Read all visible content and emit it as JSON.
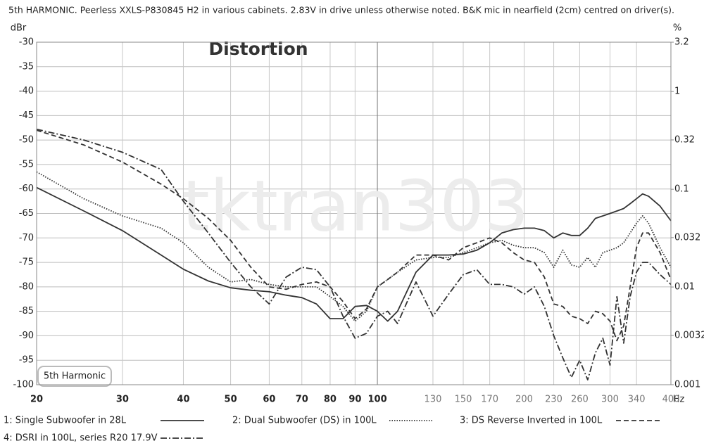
{
  "chart_data": {
    "type": "line",
    "title": "5th HARMONIC. Peerless XXLS-P830845 H2 in various cabinets. 2.83V in drive unless otherwise noted. B&K mic in nearfield (2cm) centred on driver(s).",
    "annotation": "Distortion",
    "watermark": "tktran303",
    "badge": "5th Harmonic",
    "y_label": "dBr",
    "y2_label": "%",
    "x_label": "Hz",
    "x_scale": "log",
    "y2_scale": "log",
    "grid": true,
    "xlim": [
      20,
      400
    ],
    "xticks": [
      20,
      30,
      40,
      50,
      60,
      70,
      80,
      90,
      100,
      130,
      150,
      170,
      200,
      230,
      260,
      300,
      340,
      400
    ],
    "ylim": [
      -100,
      -30
    ],
    "yticks": [
      -30,
      -35,
      -40,
      -45,
      -50,
      -55,
      -60,
      -65,
      -70,
      -75,
      -80,
      -85,
      -90,
      -95,
      -100
    ],
    "y2lim": [
      0.001,
      3.2
    ],
    "y2ticks": [
      3.2,
      1,
      0.32,
      0.1,
      0.032,
      0.01,
      0.0032,
      0.001
    ],
    "x": [
      20,
      25,
      30,
      36,
      40,
      45,
      50,
      55,
      60,
      65,
      70,
      75,
      80,
      85,
      90,
      95,
      100,
      105,
      110,
      120,
      130,
      140,
      150,
      160,
      170,
      180,
      190,
      200,
      210,
      220,
      230,
      240,
      250,
      260,
      270,
      280,
      290,
      300,
      310,
      320,
      330,
      340,
      350,
      360,
      380,
      400
    ],
    "series": [
      {
        "name": "1: Single Subwoofer in 28L",
        "color": "#333333",
        "style": "solid",
        "values": [
          -59.7,
          -64.5,
          -68.5,
          -73.5,
          -76.4,
          -78.8,
          -80.2,
          -80.7,
          -81,
          -81.7,
          -82.2,
          -83.5,
          -86.5,
          -86.5,
          -84,
          -83.8,
          -85,
          -87,
          -85,
          -77,
          -73.5,
          -73.5,
          -73.3,
          -72.5,
          -71,
          -69,
          -68.3,
          -68,
          -68,
          -68.5,
          -70,
          -69,
          -69.5,
          -69.5,
          -68,
          -66,
          -65.5,
          -65,
          -64.5,
          -64,
          -63,
          -62,
          -61,
          -61.5,
          -63.5,
          -66.5
        ]
      },
      {
        "name": "2: Dual Subwoofer (DS) in 100L",
        "color": "#333333",
        "style": "dotted",
        "values": [
          -56.5,
          -62,
          -65.5,
          -68,
          -71,
          -76,
          -79,
          -78.5,
          -79.5,
          -80,
          -80,
          -80,
          -82,
          -84,
          -87,
          -85,
          -80,
          -78.5,
          -77,
          -74.5,
          -74,
          -74,
          -73,
          -72,
          -71,
          -70.5,
          -71.5,
          -72,
          -72,
          -73,
          -76,
          -72.5,
          -75.5,
          -76,
          -74,
          -76,
          -73,
          -72.5,
          -72,
          -71,
          -69,
          -67,
          -65.5,
          -67,
          -72,
          -76
        ]
      },
      {
        "name": "3: DS Reverse Inverted in 100L",
        "color": "#333333",
        "style": "dashed",
        "values": [
          -48,
          -51,
          -54.5,
          -59,
          -62,
          -66,
          -70.5,
          -76,
          -80,
          -80.5,
          -79.5,
          -79,
          -80,
          -83,
          -86.5,
          -84.5,
          -80,
          -78.5,
          -77,
          -73.5,
          -73.5,
          -74.5,
          -72,
          -71,
          -70,
          -71,
          -73,
          -74.5,
          -75,
          -78,
          -83.5,
          -84,
          -86,
          -86.5,
          -87.5,
          -85,
          -85.5,
          -87,
          -91,
          -88,
          -80,
          -72,
          -69,
          -69,
          -73,
          -78.5
        ]
      },
      {
        "name": "4: DSRI in 100L, series R20 17.9V",
        "color": "#333333",
        "style": "dashdot",
        "values": [
          -47.8,
          -50,
          -52.5,
          -56,
          -62.5,
          -69,
          -75,
          -80,
          -83.5,
          -78,
          -76,
          -76.5,
          -80,
          -86,
          -90.5,
          -89.5,
          -86,
          -85,
          -87.5,
          -79,
          -86,
          -81.5,
          -77.5,
          -76.5,
          -79.5,
          -79.5,
          -80,
          -81.5,
          -80,
          -84,
          -90,
          -94.5,
          -98.5,
          -95,
          -99,
          -93.5,
          -90.5,
          -96,
          -82,
          -91.5,
          -82,
          -77,
          -75,
          -75,
          -77.5,
          -79.5
        ]
      }
    ]
  }
}
